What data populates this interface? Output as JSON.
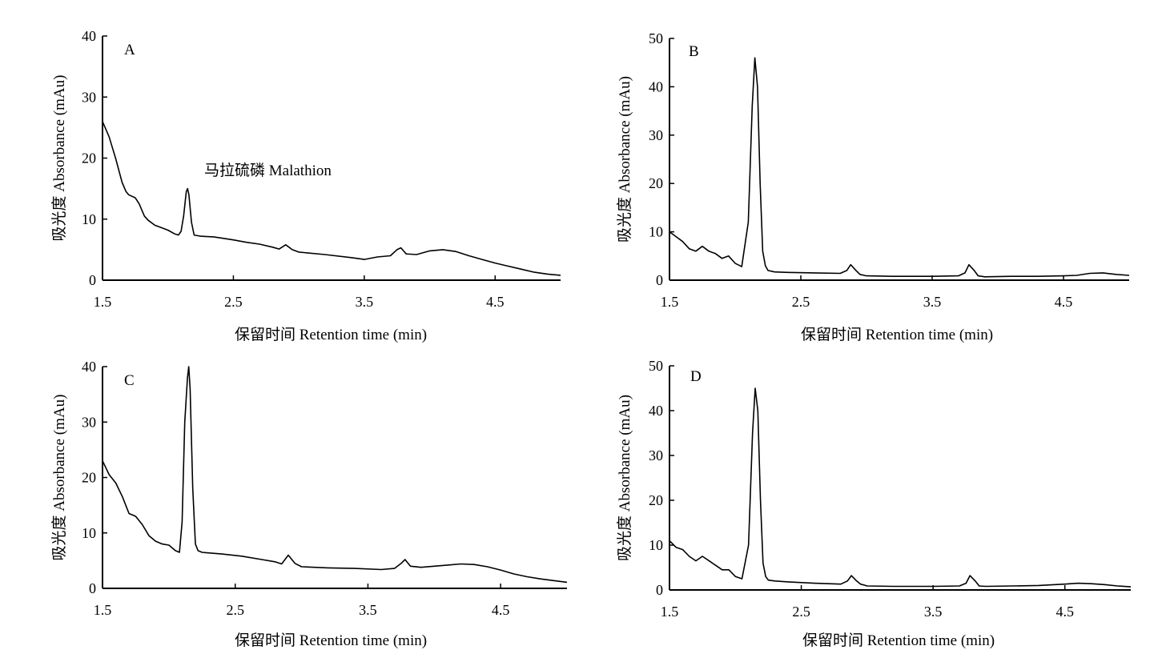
{
  "chart_data": [
    {
      "type": "line",
      "panel_label": "A",
      "xlabel": "保留时间 Retention time (min)",
      "ylabel": "吸光度 Absorbance (mAu)",
      "xlim": [
        1.5,
        5.0
      ],
      "ylim": [
        0,
        40
      ],
      "xticks": [
        "1.5",
        "2.5",
        "3.5",
        "4.5"
      ],
      "yticks": [
        "0",
        "10",
        "20",
        "30",
        "40"
      ],
      "annotation": "马拉硫磷 Malathion",
      "series": [
        {
          "x": [
            1.5,
            1.55,
            1.6,
            1.65,
            1.68,
            1.7,
            1.75,
            1.78,
            1.82,
            1.85,
            1.9,
            1.95,
            2.0,
            2.05,
            2.08,
            2.1,
            2.12,
            2.14,
            2.15,
            2.16,
            2.18,
            2.2,
            2.25,
            2.35,
            2.5,
            2.6,
            2.7,
            2.8,
            2.85,
            2.9,
            2.95,
            3.0,
            3.2,
            3.4,
            3.5,
            3.6,
            3.7,
            3.75,
            3.78,
            3.82,
            3.9,
            4.0,
            4.1,
            4.2,
            4.3,
            4.4,
            4.5,
            4.6,
            4.7,
            4.8,
            4.9,
            5.0
          ],
          "y": [
            26,
            23.5,
            20,
            16,
            14.5,
            14,
            13.5,
            12.5,
            10.5,
            9.8,
            9,
            8.6,
            8.2,
            7.6,
            7.4,
            8,
            10.5,
            14.5,
            15,
            14,
            9.5,
            7.4,
            7.2,
            7.1,
            6.6,
            6.2,
            5.9,
            5.4,
            5.1,
            5.8,
            5.0,
            4.6,
            4.2,
            3.7,
            3.4,
            3.8,
            4.0,
            5.0,
            5.3,
            4.3,
            4.2,
            4.8,
            5.0,
            4.7,
            4.0,
            3.4,
            2.8,
            2.3,
            1.8,
            1.3,
            1.0,
            0.8
          ]
        }
      ]
    },
    {
      "type": "line",
      "panel_label": "B",
      "xlabel": "保留时间 Retention time (min)",
      "ylabel": "吸光度 Absorbance (mAu)",
      "xlim": [
        1.5,
        5.0
      ],
      "ylim": [
        0,
        50
      ],
      "xticks": [
        "1.5",
        "2.5",
        "3.5",
        "4.5"
      ],
      "yticks": [
        "0",
        "10",
        "20",
        "30",
        "40",
        "50"
      ],
      "series": [
        {
          "x": [
            1.5,
            1.55,
            1.6,
            1.65,
            1.7,
            1.75,
            1.8,
            1.85,
            1.9,
            1.95,
            2.0,
            2.05,
            2.1,
            2.13,
            2.15,
            2.17,
            2.19,
            2.21,
            2.23,
            2.25,
            2.3,
            2.4,
            2.6,
            2.8,
            2.85,
            2.88,
            2.92,
            2.95,
            3.0,
            3.2,
            3.5,
            3.7,
            3.75,
            3.78,
            3.82,
            3.85,
            3.9,
            4.1,
            4.3,
            4.5,
            4.6,
            4.7,
            4.8,
            4.9,
            5.0
          ],
          "y": [
            10,
            9,
            8,
            6.5,
            6,
            7,
            6,
            5.5,
            4.5,
            5,
            3.5,
            2.8,
            12,
            36,
            46,
            40,
            20,
            6,
            3,
            2.0,
            1.7,
            1.6,
            1.5,
            1.4,
            2.0,
            3.2,
            2.0,
            1.2,
            0.9,
            0.8,
            0.8,
            0.9,
            1.5,
            3.2,
            2.0,
            0.9,
            0.7,
            0.8,
            0.8,
            0.9,
            1.0,
            1.4,
            1.5,
            1.2,
            1.0
          ]
        }
      ]
    },
    {
      "type": "line",
      "panel_label": "C",
      "xlabel": "保留时间 Retention time (min)",
      "ylabel": "吸光度 Absorbance (mAu)",
      "xlim": [
        1.5,
        5.0
      ],
      "ylim": [
        0,
        40
      ],
      "xticks": [
        "1.5",
        "2.5",
        "3.5",
        "4.5"
      ],
      "yticks": [
        "0",
        "10",
        "20",
        "30",
        "40"
      ],
      "series": [
        {
          "x": [
            1.5,
            1.55,
            1.6,
            1.65,
            1.7,
            1.75,
            1.8,
            1.85,
            1.9,
            1.95,
            2.0,
            2.05,
            2.08,
            2.1,
            2.12,
            2.14,
            2.15,
            2.16,
            2.18,
            2.2,
            2.22,
            2.25,
            2.4,
            2.55,
            2.7,
            2.8,
            2.85,
            2.9,
            2.95,
            3.0,
            3.2,
            3.4,
            3.6,
            3.7,
            3.75,
            3.78,
            3.82,
            3.9,
            4.0,
            4.1,
            4.2,
            4.3,
            4.4,
            4.5,
            4.6,
            4.7,
            4.8,
            4.9,
            5.0
          ],
          "y": [
            23,
            20.5,
            19,
            16.5,
            13.5,
            13,
            11.5,
            9.5,
            8.5,
            8,
            7.8,
            6.8,
            6.5,
            12,
            30,
            38,
            40,
            36,
            18,
            8,
            6.8,
            6.5,
            6.2,
            5.8,
            5.2,
            4.8,
            4.4,
            6.0,
            4.5,
            3.9,
            3.7,
            3.6,
            3.4,
            3.6,
            4.5,
            5.2,
            4.0,
            3.8,
            4.0,
            4.2,
            4.4,
            4.3,
            3.9,
            3.3,
            2.6,
            2.1,
            1.7,
            1.4,
            1.1
          ]
        }
      ]
    },
    {
      "type": "line",
      "panel_label": "D",
      "xlabel": "保留时间 Retention time (min)",
      "ylabel": "吸光度 Absorbance (mAu)",
      "xlim": [
        1.5,
        5.0
      ],
      "ylim": [
        0,
        50
      ],
      "xticks": [
        "1.5",
        "2.5",
        "3.5",
        "4.5"
      ],
      "yticks": [
        "0",
        "10",
        "20",
        "30",
        "40",
        "50"
      ],
      "series": [
        {
          "x": [
            1.5,
            1.55,
            1.6,
            1.65,
            1.7,
            1.75,
            1.8,
            1.85,
            1.9,
            1.95,
            2.0,
            2.05,
            2.1,
            2.13,
            2.15,
            2.17,
            2.19,
            2.21,
            2.23,
            2.25,
            2.3,
            2.4,
            2.6,
            2.8,
            2.85,
            2.88,
            2.92,
            2.95,
            3.0,
            3.2,
            3.5,
            3.7,
            3.75,
            3.78,
            3.82,
            3.85,
            3.9,
            4.1,
            4.3,
            4.5,
            4.6,
            4.7,
            4.8,
            4.9,
            5.0
          ],
          "y": [
            11,
            9.5,
            9,
            7.5,
            6.5,
            7.5,
            6.5,
            5.5,
            4.5,
            4.5,
            3.0,
            2.5,
            10,
            35,
            45,
            40,
            20,
            6,
            3,
            2.2,
            2.0,
            1.8,
            1.5,
            1.3,
            2.0,
            3.2,
            2.0,
            1.3,
            0.9,
            0.8,
            0.8,
            0.9,
            1.5,
            3.2,
            2.0,
            0.9,
            0.8,
            0.9,
            1.0,
            1.3,
            1.5,
            1.4,
            1.2,
            0.9,
            0.7
          ]
        }
      ]
    }
  ]
}
